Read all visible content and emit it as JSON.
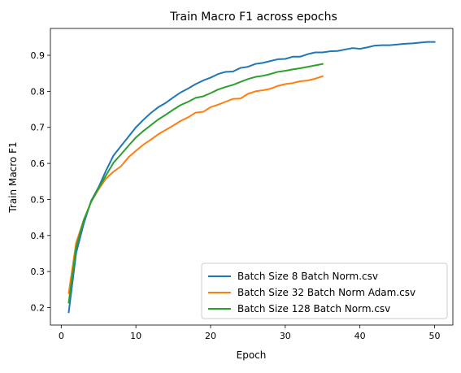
{
  "chart_data": {
    "type": "line",
    "title": "Train Macro F1 across epochs",
    "xlabel": "Epoch",
    "ylabel": "Train Macro F1",
    "xlim": [
      -1.45,
      52.45
    ],
    "ylim": [
      0.1515,
      0.9745
    ],
    "xticks": [
      0,
      10,
      20,
      30,
      40,
      50
    ],
    "xtick_labels": [
      "0",
      "10",
      "20",
      "30",
      "40",
      "50"
    ],
    "yticks": [
      0.2,
      0.3,
      0.4,
      0.5,
      0.6,
      0.7,
      0.8,
      0.9
    ],
    "ytick_labels": [
      "0.2",
      "0.3",
      "0.4",
      "0.5",
      "0.6",
      "0.7",
      "0.8",
      "0.9"
    ],
    "grid": false,
    "legend_position": "lower right",
    "series": [
      {
        "name": "Batch Size 8 Batch Norm.csv",
        "color": "#1f77b4",
        "x": [
          1,
          2,
          3,
          4,
          5,
          6,
          7,
          8,
          9,
          10,
          11,
          12,
          13,
          14,
          15,
          16,
          17,
          18,
          19,
          20,
          21,
          22,
          23,
          24,
          25,
          26,
          27,
          28,
          29,
          30,
          31,
          32,
          33,
          34,
          35,
          36,
          37,
          38,
          39,
          40,
          41,
          42,
          43,
          44,
          45,
          46,
          47,
          48,
          49,
          50
        ],
        "values": [
          0.187,
          0.352,
          0.432,
          0.496,
          0.534,
          0.58,
          0.622,
          0.648,
          0.674,
          0.7,
          0.721,
          0.74,
          0.756,
          0.768,
          0.783,
          0.797,
          0.808,
          0.82,
          0.83,
          0.838,
          0.848,
          0.854,
          0.855,
          0.865,
          0.868,
          0.876,
          0.879,
          0.884,
          0.889,
          0.89,
          0.896,
          0.896,
          0.903,
          0.908,
          0.908,
          0.911,
          0.912,
          0.916,
          0.92,
          0.918,
          0.922,
          0.927,
          0.928,
          0.928,
          0.93,
          0.932,
          0.933,
          0.935,
          0.937,
          0.937
        ]
      },
      {
        "name": "Batch Size 32 Batch Norm Adam.csv",
        "color": "#ff7f0e",
        "x": [
          1,
          2,
          3,
          4,
          5,
          6,
          7,
          8,
          9,
          10,
          11,
          12,
          13,
          14,
          15,
          16,
          17,
          18,
          19,
          20,
          21,
          22,
          23,
          24,
          25,
          26,
          27,
          28,
          29,
          30,
          31,
          32,
          33,
          34,
          35
        ],
        "values": [
          0.24,
          0.38,
          0.442,
          0.493,
          0.528,
          0.558,
          0.577,
          0.592,
          0.617,
          0.635,
          0.652,
          0.666,
          0.681,
          0.693,
          0.705,
          0.718,
          0.728,
          0.741,
          0.743,
          0.756,
          0.763,
          0.771,
          0.779,
          0.78,
          0.793,
          0.8,
          0.803,
          0.807,
          0.815,
          0.82,
          0.823,
          0.828,
          0.83,
          0.835,
          0.842
        ]
      },
      {
        "name": "Batch Size 128 Batch Norm.csv",
        "color": "#2ca02c",
        "x": [
          1,
          2,
          3,
          4,
          5,
          6,
          7,
          8,
          9,
          10,
          11,
          12,
          13,
          14,
          15,
          16,
          17,
          18,
          19,
          20,
          21,
          22,
          23,
          24,
          25,
          26,
          27,
          28,
          29,
          30,
          31,
          32,
          33,
          34,
          35
        ],
        "values": [
          0.214,
          0.368,
          0.442,
          0.493,
          0.531,
          0.567,
          0.602,
          0.625,
          0.649,
          0.672,
          0.69,
          0.706,
          0.722,
          0.735,
          0.749,
          0.762,
          0.771,
          0.782,
          0.786,
          0.795,
          0.805,
          0.812,
          0.818,
          0.826,
          0.834,
          0.84,
          0.843,
          0.848,
          0.854,
          0.857,
          0.861,
          0.864,
          0.868,
          0.872,
          0.876
        ]
      }
    ]
  }
}
